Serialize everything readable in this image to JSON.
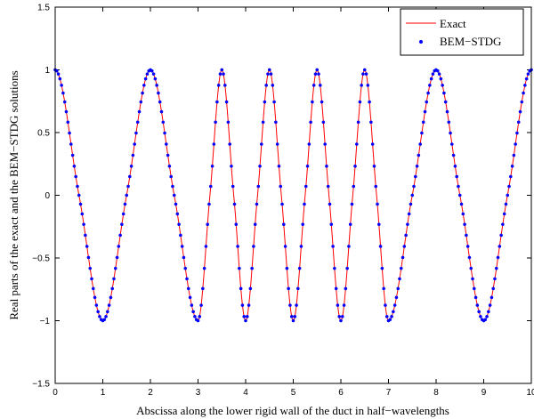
{
  "chart_data": {
    "type": "line",
    "title": "",
    "xlabel": "Abscissa along the lower rigid wall of the duct in half−wavelengths",
    "ylabel": "Real parts of the exact and the BEM−STDG solutions",
    "xlim": [
      0,
      10
    ],
    "ylim": [
      -1.5,
      1.5
    ],
    "xticks": [
      0,
      1,
      2,
      3,
      4,
      5,
      6,
      7,
      8,
      9,
      10
    ],
    "yticks": [
      -1.5,
      -1,
      -0.5,
      0,
      0.5,
      1,
      1.5
    ],
    "xtick_labels": [
      "0",
      "1",
      "2",
      "3",
      "4",
      "5",
      "6",
      "7",
      "8",
      "9",
      "10"
    ],
    "ytick_labels": [
      "−1.5",
      "−1",
      "−0.5",
      "0",
      "0.5",
      "1",
      "1.5"
    ],
    "grid": false,
    "legend_position": "top-right",
    "series": [
      {
        "name": "Exact",
        "style": "line",
        "color": "#ff0000",
        "x": [
          0,
          0.5,
          1,
          1.5,
          2,
          2.5,
          3,
          3.25,
          3.5,
          3.75,
          4,
          4.25,
          4.5,
          4.75,
          5,
          5.25,
          5.5,
          5.75,
          6,
          6.25,
          6.5,
          6.75,
          7,
          7.5,
          8,
          8.5,
          9,
          9.5,
          10
        ],
        "y": [
          1,
          0,
          -1,
          0,
          1,
          0,
          -1,
          0,
          1,
          0,
          -1,
          0,
          1,
          0,
          -1,
          0,
          1,
          0,
          -1,
          0,
          1,
          0,
          -1,
          0,
          1,
          0,
          -1,
          0,
          1
        ]
      },
      {
        "name": "BEM−STDG",
        "style": "markers",
        "color": "#0000ff",
        "x": [
          0,
          0.5,
          1,
          1.5,
          2,
          2.5,
          3,
          3.25,
          3.5,
          3.75,
          4,
          4.25,
          4.5,
          4.75,
          5,
          5.25,
          5.5,
          5.75,
          6,
          6.25,
          6.5,
          6.75,
          7,
          7.5,
          8,
          8.5,
          9,
          9.5,
          10
        ],
        "y": [
          1,
          0,
          -1,
          0,
          1,
          0,
          -1,
          0,
          1,
          0,
          -1,
          0,
          1,
          0,
          -1,
          0,
          1,
          0,
          -1,
          0,
          1,
          0,
          -1,
          0,
          1,
          0,
          -1,
          0,
          1
        ]
      }
    ]
  }
}
